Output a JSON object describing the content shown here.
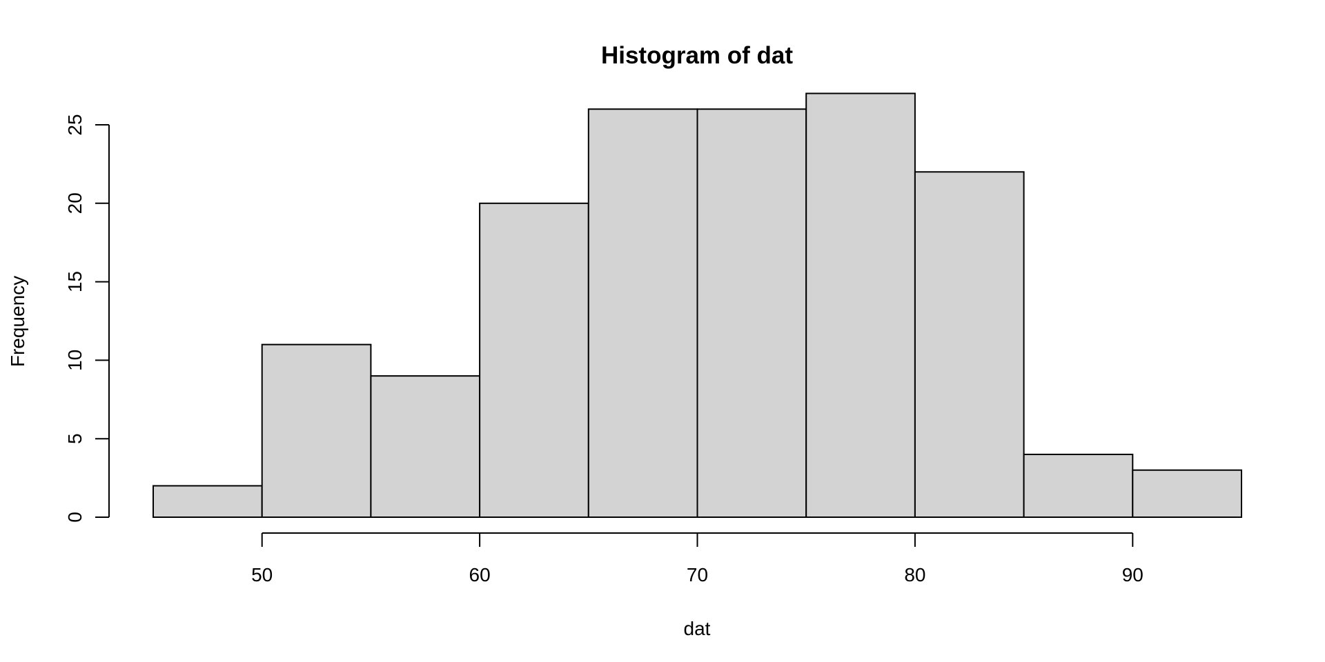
{
  "chart_data": {
    "type": "bar",
    "title": "Histogram of dat",
    "xlabel": "dat",
    "ylabel": "Frequency",
    "bins": [
      {
        "start": 45,
        "end": 50,
        "count": 2
      },
      {
        "start": 50,
        "end": 55,
        "count": 11
      },
      {
        "start": 55,
        "end": 60,
        "count": 9
      },
      {
        "start": 60,
        "end": 65,
        "count": 20
      },
      {
        "start": 65,
        "end": 70,
        "count": 26
      },
      {
        "start": 70,
        "end": 75,
        "count": 26
      },
      {
        "start": 75,
        "end": 80,
        "count": 27
      },
      {
        "start": 80,
        "end": 85,
        "count": 22
      },
      {
        "start": 85,
        "end": 90,
        "count": 4
      },
      {
        "start": 90,
        "end": 95,
        "count": 3
      }
    ],
    "xlim": [
      45,
      95
    ],
    "ylim": [
      0,
      27
    ],
    "x_ticks": [
      "50",
      "60",
      "70",
      "80",
      "90"
    ],
    "y_ticks": [
      "0",
      "5",
      "10",
      "15",
      "20",
      "25"
    ],
    "bar_fill": "#d3d3d3",
    "bar_stroke": "#000000",
    "grid": false,
    "legend": "none"
  }
}
